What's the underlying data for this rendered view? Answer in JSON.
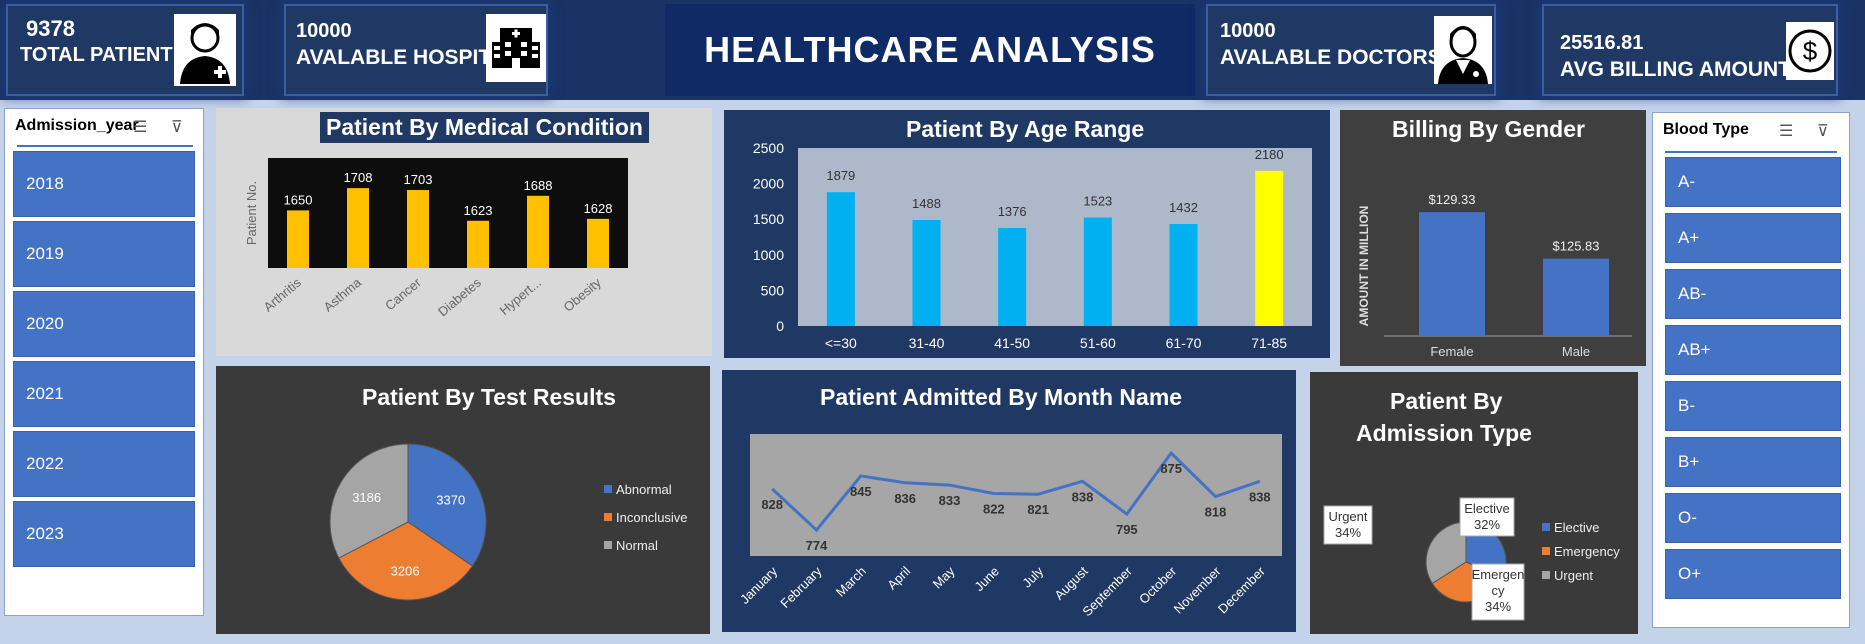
{
  "header": {
    "title": "HEALTHCARE   ANALYSIS",
    "kpis": [
      {
        "value": "9378",
        "label": "TOTAL PATIENT",
        "icon": "patient-icon"
      },
      {
        "value": "10000",
        "label": "AVALABLE HOSPITALS",
        "icon": "hospital-icon"
      },
      {
        "value": "10000",
        "label": "AVALABLE DOCTORS",
        "icon": "doctor-icon"
      },
      {
        "value": "25516.81",
        "label": "AVG  BILLING AMOUNT",
        "icon": "dollar-icon"
      }
    ]
  },
  "slicers": {
    "year": {
      "title": "Admission_year",
      "items": [
        "2018",
        "2019",
        "2020",
        "2021",
        "2022",
        "2023"
      ]
    },
    "blood": {
      "title": "Blood Type",
      "items": [
        "A-",
        "A+",
        "AB-",
        "AB+",
        "B-",
        "B+",
        "O-",
        "O+"
      ]
    }
  },
  "charts": {
    "medical": {
      "title": "Patient By Medical Condition"
    },
    "age": {
      "title": "Patient By Age Range"
    },
    "gender": {
      "title": "Billing By Gender"
    },
    "test": {
      "title": "Patient By Test Results"
    },
    "month": {
      "title": "Patient Admitted  By Month Name"
    },
    "admission": {
      "title_line1": "Patient By",
      "title_line2": "Admission Type"
    }
  },
  "chart_data": [
    {
      "id": "medical",
      "type": "bar",
      "title": "Patient By Medical Condition",
      "ylabel": "Patient No.",
      "categories": [
        "Arthritis",
        "Asthma",
        "Cancer",
        "Diabetes",
        "Hypert...",
        "Obesity"
      ],
      "values": [
        1650,
        1708,
        1703,
        1623,
        1688,
        1628
      ],
      "color": "#ffc000"
    },
    {
      "id": "age",
      "type": "bar",
      "title": "Patient By Age Range",
      "categories": [
        "<=30",
        "31-40",
        "41-50",
        "51-60",
        "61-70",
        "71-85"
      ],
      "values": [
        1879,
        1488,
        1376,
        1523,
        1432,
        2180
      ],
      "yticks": [
        0,
        500,
        1000,
        1500,
        2000,
        2500
      ],
      "ylim": [
        0,
        2500
      ],
      "colors": [
        "#00b0f0",
        "#00b0f0",
        "#00b0f0",
        "#00b0f0",
        "#00b0f0",
        "#ffff00"
      ]
    },
    {
      "id": "gender",
      "type": "bar",
      "title": "Billing By Gender",
      "ylabel": "AMOUNT IN MILLION",
      "categories": [
        "Female",
        "Male"
      ],
      "values": [
        129.33,
        125.83
      ],
      "labels": [
        "$129.33",
        "$125.83"
      ],
      "color": "#4472c4"
    },
    {
      "id": "test",
      "type": "pie",
      "title": "Patient By Test Results",
      "categories": [
        "Abnormal",
        "Inconclusive",
        "Normal"
      ],
      "values": [
        3370,
        3206,
        3186
      ],
      "colors": [
        "#4472c4",
        "#ed7d31",
        "#a5a5a5"
      ]
    },
    {
      "id": "month",
      "type": "line",
      "title": "Patient Admitted  By Month Name",
      "categories": [
        "January",
        "February",
        "March",
        "April",
        "May",
        "June",
        "July",
        "August",
        "September",
        "October",
        "November",
        "December"
      ],
      "values": [
        828,
        774,
        845,
        836,
        833,
        822,
        821,
        838,
        795,
        875,
        818,
        838
      ],
      "color": "#4472c4"
    },
    {
      "id": "admission",
      "type": "pie",
      "title": "Patient By Admission Type",
      "categories": [
        "Elective",
        "Emergency",
        "Urgent"
      ],
      "values": [
        32,
        34,
        34
      ],
      "labels": [
        "Elective\n32%",
        "Emergen\ncy\n34%",
        "Urgent\n34%"
      ],
      "colors": [
        "#4472c4",
        "#ed7d31",
        "#a5a5a5"
      ]
    }
  ]
}
